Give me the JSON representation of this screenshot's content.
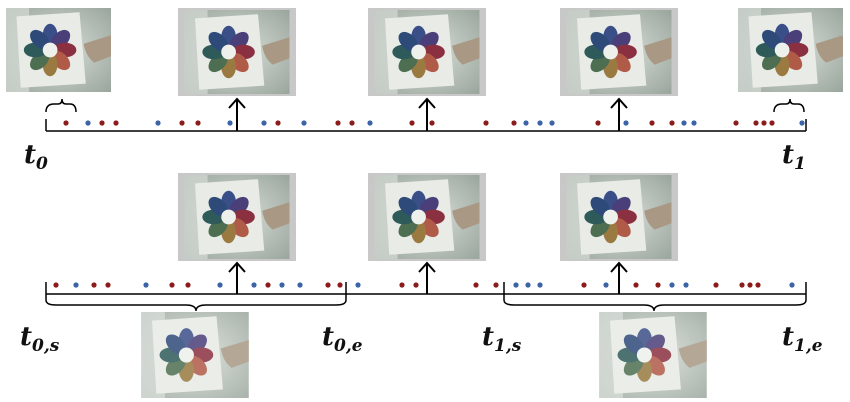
{
  "colors": {
    "red_event": "#8b1c1c",
    "blue_event": "#3b63a6",
    "axis": "#000000",
    "frame_border": "#c8c8c8"
  },
  "labels": {
    "t0": {
      "base": "t",
      "sub": "0"
    },
    "t1": {
      "base": "t",
      "sub": "1"
    },
    "t0s": {
      "base": "t",
      "sub": "0,s"
    },
    "t0e": {
      "base": "t",
      "sub": "0,e"
    },
    "t1s": {
      "base": "t",
      "sub": "1,s"
    },
    "t1e": {
      "base": "t",
      "sub": "1,e"
    }
  },
  "images": {
    "description_icon": "camera-frame-with-color-pinwheel"
  }
}
